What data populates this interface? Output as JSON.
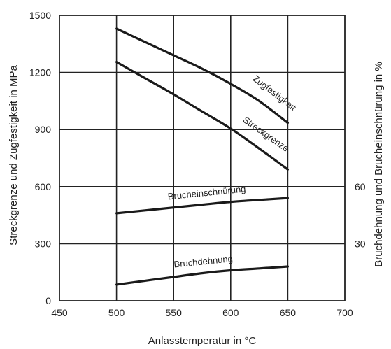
{
  "chart_data": {
    "type": "line",
    "title": "",
    "xlabel": "Anlasstemperatur in °C",
    "ylabel": "Streckgrenze und Zugfestigkeit in MPa",
    "ylabel_right": "Bruchdehnung und Brucheinschnürung in %",
    "xlim": [
      450,
      700
    ],
    "ylim": [
      0,
      1500
    ],
    "ylim_right": [
      0,
      150
    ],
    "x_ticks": [
      "450",
      "500",
      "550",
      "600",
      "650",
      "700"
    ],
    "y_ticks": [
      "0",
      "300",
      "600",
      "900",
      "1200",
      "1500"
    ],
    "y_ticks_right": [
      "30",
      "60"
    ],
    "grid": true,
    "series": [
      {
        "name": "Zugfestigkeit",
        "axis": "left",
        "x": [
          500,
          525,
          550,
          575,
          600,
          625,
          650
        ],
        "y": [
          1430,
          1360,
          1290,
          1220,
          1140,
          1050,
          935
        ]
      },
      {
        "name": "Streckgrenze",
        "axis": "left",
        "x": [
          500,
          525,
          550,
          575,
          600,
          625,
          650
        ],
        "y": [
          1255,
          1170,
          1085,
          995,
          905,
          800,
          690
        ]
      },
      {
        "name": "Brucheinschnürung",
        "axis": "right",
        "x": [
          500,
          525,
          550,
          575,
          600,
          625,
          650
        ],
        "y": [
          46,
          47.5,
          49,
          50.5,
          52,
          53,
          54
        ]
      },
      {
        "name": "Bruchdehnung",
        "axis": "right",
        "x": [
          500,
          525,
          550,
          575,
          600,
          625,
          650
        ],
        "y": [
          8.5,
          10.5,
          12.5,
          14.5,
          16,
          17,
          18
        ]
      }
    ]
  }
}
